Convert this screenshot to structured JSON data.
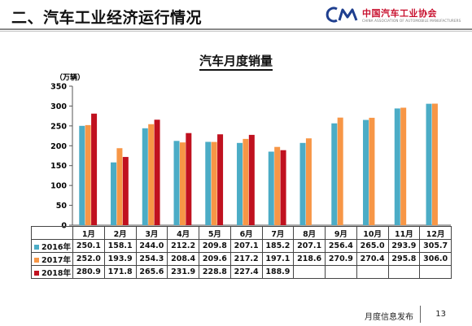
{
  "header": {
    "title": "二、汽车工业经济运行情况",
    "logo_cn": "中国汽车工业协会",
    "logo_en": "CHINA ASSOCIATION OF AUTOMOBILE MANUFACTURERS",
    "logo_mark": "CM"
  },
  "footer": {
    "text": "月度信息发布",
    "page_number": "13"
  },
  "chart_data": {
    "type": "bar",
    "title": "汽车月度销量",
    "ylabel": "（万辆）",
    "ylim": [
      0,
      350
    ],
    "yticks": [
      0,
      50,
      100,
      150,
      200,
      250,
      300,
      350
    ],
    "grid": false,
    "legend": "table-rows",
    "categories": [
      "1月",
      "2月",
      "3月",
      "4月",
      "5月",
      "6月",
      "7月",
      "8月",
      "9月",
      "10月",
      "11月",
      "12月"
    ],
    "series": [
      {
        "name": "2016年",
        "color": "#4bacc6",
        "values": [
          250.1,
          158.1,
          244.0,
          212.2,
          209.8,
          207.1,
          185.2,
          207.1,
          256.4,
          265.0,
          293.9,
          305.7
        ]
      },
      {
        "name": "2017年",
        "color": "#f79646",
        "values": [
          252.0,
          193.9,
          254.3,
          208.4,
          209.6,
          217.2,
          197.1,
          218.6,
          270.9,
          270.4,
          295.8,
          306.0
        ]
      },
      {
        "name": "2018年",
        "color": "#c0111f",
        "values": [
          280.9,
          171.8,
          265.6,
          231.9,
          228.8,
          227.4,
          188.9,
          null,
          null,
          null,
          null,
          null
        ]
      }
    ]
  }
}
